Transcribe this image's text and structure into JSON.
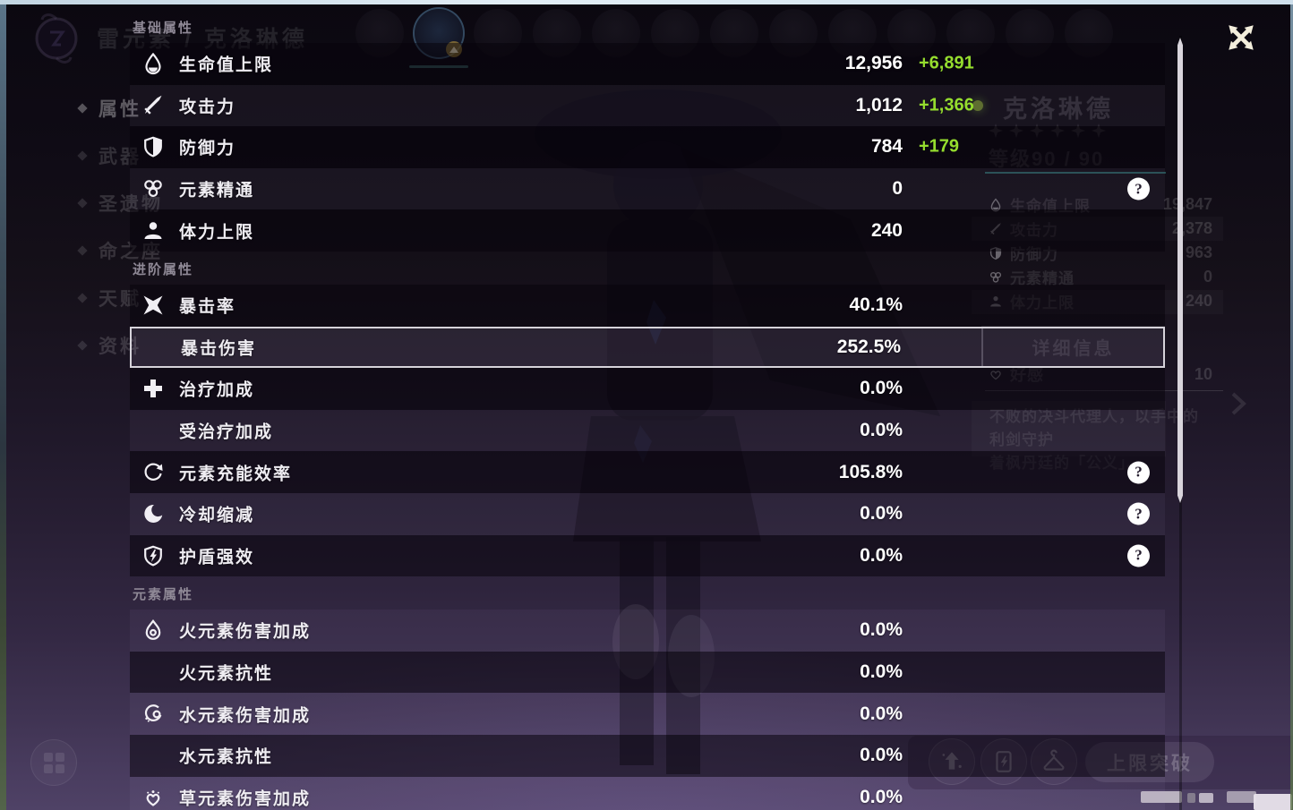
{
  "colors": {
    "bonus_green": "#95dd2e",
    "selected_border": "#d6d3da",
    "teal_divider": "#46b9af",
    "help_icon_bg": "#ffffff"
  },
  "overlay": {
    "help_glyph": "?",
    "sections": [
      {
        "header": "基础属性",
        "rows": [
          {
            "id": "max-hp",
            "icon": "hp-icon",
            "label": "生命值上限",
            "value": "12,956",
            "bonus": "+6,891",
            "help": false,
            "variant": "dark"
          },
          {
            "id": "atk",
            "icon": "atk-icon",
            "label": "攻击力",
            "value": "1,012",
            "bonus": "+1,366",
            "help": false,
            "variant": "light"
          },
          {
            "id": "def",
            "icon": "def-icon",
            "label": "防御力",
            "value": "784",
            "bonus": "+179",
            "help": false,
            "variant": "dark"
          },
          {
            "id": "elemental-mastery",
            "icon": "elemental-mastery-icon",
            "label": "元素精通",
            "value": "0",
            "bonus": null,
            "help": true,
            "variant": "light"
          },
          {
            "id": "max-stamina",
            "icon": "stamina-icon",
            "label": "体力上限",
            "value": "240",
            "bonus": null,
            "help": false,
            "variant": "dark"
          }
        ]
      },
      {
        "header": "进阶属性",
        "rows": [
          {
            "id": "crit-rate",
            "icon": "crit-rate-icon",
            "label": "暴击率",
            "value": "40.1%",
            "bonus": null,
            "help": false,
            "variant": "dark"
          },
          {
            "id": "crit-dmg",
            "icon": null,
            "label": "暴击伤害",
            "value": "252.5%",
            "bonus": null,
            "help": false,
            "variant": "light",
            "selected": true
          },
          {
            "id": "healing-bonus",
            "icon": "healing-bonus-icon",
            "label": "治疗加成",
            "value": "0.0%",
            "bonus": null,
            "help": false,
            "variant": "dark"
          },
          {
            "id": "incoming-healing",
            "icon": null,
            "label": "受治疗加成",
            "value": "0.0%",
            "bonus": null,
            "help": false,
            "variant": "light"
          },
          {
            "id": "energy-recharge",
            "icon": "energy-recharge-icon",
            "label": "元素充能效率",
            "value": "105.8%",
            "bonus": null,
            "help": true,
            "variant": "dark"
          },
          {
            "id": "cd-reduction",
            "icon": "cooldown-reduction-icon",
            "label": "冷却缩减",
            "value": "0.0%",
            "bonus": null,
            "help": true,
            "variant": "light"
          },
          {
            "id": "shield-strength",
            "icon": "shield-strength-icon",
            "label": "护盾强效",
            "value": "0.0%",
            "bonus": null,
            "help": true,
            "variant": "dark"
          }
        ]
      },
      {
        "header": "元素属性",
        "rows": [
          {
            "id": "pyro-dmg-bonus",
            "icon": "pyro-icon",
            "label": "火元素伤害加成",
            "value": "0.0%",
            "bonus": null,
            "help": false,
            "variant": "light"
          },
          {
            "id": "pyro-res",
            "icon": null,
            "label": "火元素抗性",
            "value": "0.0%",
            "bonus": null,
            "help": false,
            "variant": "dark"
          },
          {
            "id": "hydro-dmg-bonus",
            "icon": "hydro-icon",
            "label": "水元素伤害加成",
            "value": "0.0%",
            "bonus": null,
            "help": false,
            "variant": "light"
          },
          {
            "id": "hydro-res",
            "icon": null,
            "label": "水元素抗性",
            "value": "0.0%",
            "bonus": null,
            "help": false,
            "variant": "dark"
          },
          {
            "id": "dendro-dmg-bonus",
            "icon": "dendro-icon",
            "label": "草元素伤害加成",
            "value": "0.0%",
            "bonus": null,
            "help": false,
            "variant": "light"
          }
        ]
      }
    ]
  },
  "background": {
    "element_label": "雷元素 / 克洛琳德",
    "nav": [
      {
        "label": "属性",
        "active": true
      },
      {
        "label": "武器",
        "active": false
      },
      {
        "label": "圣遗物",
        "active": false
      },
      {
        "label": "命之座",
        "active": false
      },
      {
        "label": "天赋",
        "active": false
      },
      {
        "label": "资料",
        "active": false
      }
    ],
    "avatars": {
      "count": 13,
      "selected_index": 1
    },
    "character": {
      "name": "克洛琳德",
      "stars": 6,
      "level_label": "等级90 / 90",
      "stats": [
        {
          "icon": "hp-icon",
          "label": "生命值上限",
          "value": "19,847"
        },
        {
          "icon": "atk-icon",
          "label": "攻击力",
          "value": "2,378"
        },
        {
          "icon": "def-icon",
          "label": "防御力",
          "value": "963"
        },
        {
          "icon": "elemental-mastery-icon",
          "label": "元素精通",
          "value": "0"
        },
        {
          "icon": "stamina-icon",
          "label": "体力上限",
          "value": "240"
        }
      ],
      "details_button": "详细信息",
      "friendship_label": "好感",
      "friendship_value": "10",
      "description_line1": "不败的决斗代理人，以手中的利剑守护",
      "description_line2": "着枫丹廷的「公义」。"
    },
    "ascend_button": "上限突破"
  }
}
